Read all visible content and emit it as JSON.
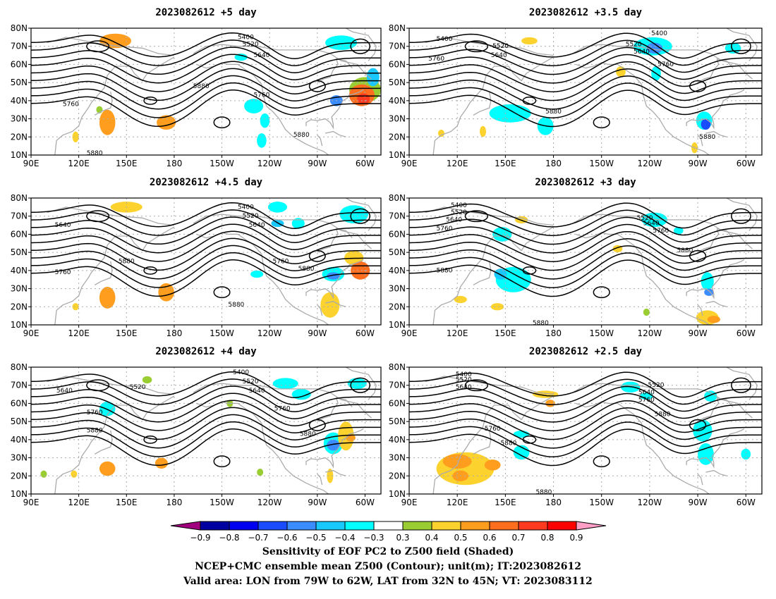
{
  "panels": [
    {
      "id": "p1",
      "title": "2023082612  +5 day",
      "contour_labels": [
        {
          "text": "5400",
          "lon": -135,
          "lat": 75
        },
        {
          "text": "5520",
          "lon": -132,
          "lat": 71
        },
        {
          "text": "5640",
          "lon": -125,
          "lat": 65
        },
        {
          "text": "5880",
          "lon": -163,
          "lat": 48
        },
        {
          "text": "5760",
          "lon": -125,
          "lat": 43
        },
        {
          "text": "5760",
          "lon": 115,
          "lat": 38
        },
        {
          "text": "5880",
          "lon": -100,
          "lat": 21
        },
        {
          "text": "5880",
          "lon": 130,
          "lat": 11
        }
      ],
      "shaded": [
        {
          "lon": 143,
          "lat": 73,
          "rx": 10,
          "ry": 4,
          "v": 0.5
        },
        {
          "lon": -75,
          "lat": 72,
          "rx": 10,
          "ry": 4,
          "v": -0.4
        },
        {
          "lon": -138,
          "lat": 64,
          "rx": 4,
          "ry": 2,
          "v": -0.4
        },
        {
          "lon": -72,
          "lat": 61,
          "rx": 4,
          "ry": 2,
          "v": -0.3
        },
        {
          "lon": -60,
          "lat": 46,
          "rx": 10,
          "ry": 7,
          "v": 0.3
        },
        {
          "lon": -62,
          "lat": 43,
          "rx": 8,
          "ry": 6,
          "v": 0.6
        },
        {
          "lon": -61,
          "lat": 41,
          "rx": 4,
          "ry": 3,
          "v": 0.7
        },
        {
          "lon": -78,
          "lat": 40,
          "rx": 4,
          "ry": 3,
          "v": -0.6
        },
        {
          "lon": -55,
          "lat": 53,
          "rx": 4,
          "ry": 5,
          "v": -0.5
        },
        {
          "lon": -130,
          "lat": 37,
          "rx": 6,
          "ry": 4,
          "v": -0.4
        },
        {
          "lon": -123,
          "lat": 29,
          "rx": 3,
          "ry": 4,
          "v": -0.4
        },
        {
          "lon": -125,
          "lat": 18,
          "rx": 3,
          "ry": 4,
          "v": -0.4
        },
        {
          "lon": -107,
          "lat": 38,
          "rx": 3,
          "ry": 2,
          "v": -0.3
        },
        {
          "lon": 138,
          "lat": 28,
          "rx": 5,
          "ry": 7,
          "v": 0.5
        },
        {
          "lon": 118,
          "lat": 20,
          "rx": 2,
          "ry": 3,
          "v": 0.4
        },
        {
          "lon": 175,
          "lat": 28,
          "rx": 6,
          "ry": 4,
          "v": 0.5
        },
        {
          "lon": 133,
          "lat": 35,
          "rx": 2,
          "ry": 2,
          "v": 0.3
        }
      ]
    },
    {
      "id": "p2",
      "title": "2023082612  +3.5 day",
      "contour_labels": [
        {
          "text": "5400",
          "lon": -114,
          "lat": 77
        },
        {
          "text": "5400",
          "lon": 112,
          "lat": 74
        },
        {
          "text": "5520",
          "lon": -130,
          "lat": 71
        },
        {
          "text": "5640",
          "lon": -125,
          "lat": 67
        },
        {
          "text": "5520",
          "lon": 147,
          "lat": 70
        },
        {
          "text": "5640",
          "lon": 146,
          "lat": 65
        },
        {
          "text": "5760",
          "lon": 107,
          "lat": 63
        },
        {
          "text": "5760",
          "lon": -110,
          "lat": 60
        },
        {
          "text": "5880",
          "lon": 180,
          "lat": 34
        },
        {
          "text": "5880",
          "lon": -84,
          "lat": 20
        }
      ],
      "shaded": [
        {
          "lon": -118,
          "lat": 70,
          "rx": 12,
          "ry": 5,
          "v": -0.4
        },
        {
          "lon": -117,
          "lat": 69,
          "rx": 5,
          "ry": 3,
          "v": -0.6
        },
        {
          "lon": -68,
          "lat": 69,
          "rx": 5,
          "ry": 3,
          "v": -0.4
        },
        {
          "lon": -98,
          "lat": 67,
          "rx": 4,
          "ry": 2,
          "v": -0.3
        },
        {
          "lon": 165,
          "lat": 73,
          "rx": 5,
          "ry": 2,
          "v": 0.4
        },
        {
          "lon": -116,
          "lat": 55,
          "rx": 3,
          "ry": 4,
          "v": -0.4
        },
        {
          "lon": -138,
          "lat": 56,
          "rx": 3,
          "ry": 3,
          "v": 0.4
        },
        {
          "lon": 153,
          "lat": 33,
          "rx": 13,
          "ry": 5,
          "v": -0.4
        },
        {
          "lon": 175,
          "lat": 26,
          "rx": 5,
          "ry": 5,
          "v": -0.4
        },
        {
          "lon": 150,
          "lat": 52,
          "rx": 5,
          "ry": 2,
          "v": -0.3
        },
        {
          "lon": -86,
          "lat": 29,
          "rx": 5,
          "ry": 5,
          "v": -0.4
        },
        {
          "lon": -85,
          "lat": 27,
          "rx": 3,
          "ry": 3,
          "v": -0.7
        },
        {
          "lon": -92,
          "lat": 14,
          "rx": 2,
          "ry": 3,
          "v": 0.4
        },
        {
          "lon": 136,
          "lat": 23,
          "rx": 2,
          "ry": 3,
          "v": 0.4
        },
        {
          "lon": 110,
          "lat": 22,
          "rx": 2,
          "ry": 2,
          "v": 0.4
        }
      ]
    },
    {
      "id": "p3",
      "title": "2023082612  +4.5 day",
      "contour_labels": [
        {
          "text": "5400",
          "lon": -135,
          "lat": 75
        },
        {
          "text": "5520",
          "lon": -132,
          "lat": 70
        },
        {
          "text": "5640",
          "lon": -128,
          "lat": 65
        },
        {
          "text": "5640",
          "lon": 110,
          "lat": 65
        },
        {
          "text": "5880",
          "lon": 150,
          "lat": 45
        },
        {
          "text": "5760",
          "lon": -113,
          "lat": 45
        },
        {
          "text": "5880",
          "lon": -97,
          "lat": 41
        },
        {
          "text": "5760",
          "lon": 110,
          "lat": 39
        },
        {
          "text": "5880",
          "lon": -141,
          "lat": 21
        }
      ],
      "shaded": [
        {
          "lon": 150,
          "lat": 75,
          "rx": 10,
          "ry": 3,
          "v": 0.4
        },
        {
          "lon": -115,
          "lat": 75,
          "rx": 6,
          "ry": 3,
          "v": -0.4
        },
        {
          "lon": -67,
          "lat": 71,
          "rx": 9,
          "ry": 5,
          "v": -0.4
        },
        {
          "lon": -102,
          "lat": 66,
          "rx": 4,
          "ry": 3,
          "v": -0.4
        },
        {
          "lon": -115,
          "lat": 66,
          "rx": 4,
          "ry": 2,
          "v": -0.5
        },
        {
          "lon": -67,
          "lat": 47,
          "rx": 6,
          "ry": 4,
          "v": 0.4
        },
        {
          "lon": -63,
          "lat": 40,
          "rx": 6,
          "ry": 5,
          "v": 0.6
        },
        {
          "lon": -80,
          "lat": 38,
          "rx": 7,
          "ry": 4,
          "v": -0.4
        },
        {
          "lon": -80,
          "lat": 37,
          "rx": 4,
          "ry": 2,
          "v": -0.6
        },
        {
          "lon": -128,
          "lat": 38,
          "rx": 4,
          "ry": 2,
          "v": -0.4
        },
        {
          "lon": -82,
          "lat": 21,
          "rx": 6,
          "ry": 7,
          "v": 0.4
        },
        {
          "lon": 138,
          "lat": 25,
          "rx": 5,
          "ry": 6,
          "v": 0.5
        },
        {
          "lon": 118,
          "lat": 20,
          "rx": 2,
          "ry": 2,
          "v": 0.4
        },
        {
          "lon": 175,
          "lat": 28,
          "rx": 5,
          "ry": 5,
          "v": 0.5
        }
      ]
    },
    {
      "id": "p4",
      "title": "2023082612  +3 day",
      "contour_labels": [
        {
          "text": "5400",
          "lon": 121,
          "lat": 76
        },
        {
          "text": "5520",
          "lon": 121,
          "lat": 72
        },
        {
          "text": "5640",
          "lon": 118,
          "lat": 68
        },
        {
          "text": "5760",
          "lon": 112,
          "lat": 63
        },
        {
          "text": "5520",
          "lon": -123,
          "lat": 69
        },
        {
          "text": "5640",
          "lon": -119,
          "lat": 66
        },
        {
          "text": "5760",
          "lon": -113,
          "lat": 62
        },
        {
          "text": "5880",
          "lon": -98,
          "lat": 51
        },
        {
          "text": "5880",
          "lon": 112,
          "lat": 40
        },
        {
          "text": "5880",
          "lon": 172,
          "lat": 11
        }
      ],
      "shaded": [
        {
          "lon": 160,
          "lat": 68,
          "rx": 4,
          "ry": 2,
          "v": 0.4
        },
        {
          "lon": -117,
          "lat": 68,
          "rx": 8,
          "ry": 4,
          "v": -0.4
        },
        {
          "lon": -102,
          "lat": 62,
          "rx": 3,
          "ry": 2,
          "v": -0.4
        },
        {
          "lon": 148,
          "lat": 60,
          "rx": 6,
          "ry": 4,
          "v": -0.4
        },
        {
          "lon": 165,
          "lat": 56,
          "rx": 3,
          "ry": 2,
          "v": -0.3
        },
        {
          "lon": -140,
          "lat": 52,
          "rx": 3,
          "ry": 2,
          "v": 0.4
        },
        {
          "lon": 155,
          "lat": 35,
          "rx": 11,
          "ry": 7,
          "v": -0.4
        },
        {
          "lon": 147,
          "lat": 38,
          "rx": 4,
          "ry": 3,
          "v": -0.5
        },
        {
          "lon": -84,
          "lat": 34,
          "rx": 4,
          "ry": 5,
          "v": -0.4
        },
        {
          "lon": -83,
          "lat": 28,
          "rx": 3,
          "ry": 2,
          "v": -0.6
        },
        {
          "lon": -84,
          "lat": 14,
          "rx": 7,
          "ry": 4,
          "v": 0.4
        },
        {
          "lon": -80,
          "lat": 13,
          "rx": 4,
          "ry": 2,
          "v": 0.5
        },
        {
          "lon": 122,
          "lat": 24,
          "rx": 4,
          "ry": 2,
          "v": 0.4
        },
        {
          "lon": 145,
          "lat": 20,
          "rx": 4,
          "ry": 2,
          "v": 0.4
        },
        {
          "lon": -122,
          "lat": 17,
          "rx": 2,
          "ry": 2,
          "v": 0.3
        }
      ]
    },
    {
      "id": "p5",
      "title": "2023082612  +4 day",
      "contour_labels": [
        {
          "text": "5400",
          "lon": -138,
          "lat": 77
        },
        {
          "text": "5520",
          "lon": -132,
          "lat": 72
        },
        {
          "text": "5640",
          "lon": -128,
          "lat": 67
        },
        {
          "text": "5520",
          "lon": 157,
          "lat": 69
        },
        {
          "text": "5640",
          "lon": 111,
          "lat": 67
        },
        {
          "text": "5760",
          "lon": 130,
          "lat": 55
        },
        {
          "text": "5760",
          "lon": -112,
          "lat": 57
        },
        {
          "text": "5880",
          "lon": 130,
          "lat": 45
        },
        {
          "text": "5880",
          "lon": -96,
          "lat": 43
        }
      ],
      "shaded": [
        {
          "lon": -65,
          "lat": 71,
          "rx": 6,
          "ry": 3,
          "v": -0.4
        },
        {
          "lon": -110,
          "lat": 71,
          "rx": 8,
          "ry": 3,
          "v": -0.4
        },
        {
          "lon": -100,
          "lat": 65,
          "rx": 6,
          "ry": 3,
          "v": -0.4
        },
        {
          "lon": 163,
          "lat": 73,
          "rx": 3,
          "ry": 2,
          "v": 0.3
        },
        {
          "lon": 138,
          "lat": 57,
          "rx": 5,
          "ry": 4,
          "v": -0.4
        },
        {
          "lon": -145,
          "lat": 60,
          "rx": 2,
          "ry": 2,
          "v": 0.3
        },
        {
          "lon": -80,
          "lat": 38,
          "rx": 6,
          "ry": 6,
          "v": -0.4
        },
        {
          "lon": -80,
          "lat": 37,
          "rx": 4,
          "ry": 3,
          "v": -0.6
        },
        {
          "lon": -72,
          "lat": 42,
          "rx": 5,
          "ry": 8,
          "v": 0.4
        },
        {
          "lon": -69,
          "lat": 41,
          "rx": 3,
          "ry": 2,
          "v": 0.5
        },
        {
          "lon": -82,
          "lat": 20,
          "rx": 2,
          "ry": 4,
          "v": 0.4
        },
        {
          "lon": 138,
          "lat": 24,
          "rx": 5,
          "ry": 4,
          "v": 0.5
        },
        {
          "lon": 117,
          "lat": 21,
          "rx": 2,
          "ry": 2,
          "v": 0.4
        },
        {
          "lon": 172,
          "lat": 27,
          "rx": 4,
          "ry": 3,
          "v": 0.5
        },
        {
          "lon": 98,
          "lat": 21,
          "rx": 2,
          "ry": 2,
          "v": 0.3
        },
        {
          "lon": -126,
          "lat": 22,
          "rx": 2,
          "ry": 2,
          "v": 0.3
        }
      ]
    },
    {
      "id": "p6",
      "title": "2023082612  +2.5 day",
      "contour_labels": [
        {
          "text": "5400",
          "lon": 124,
          "lat": 76
        },
        {
          "text": "5520",
          "lon": 124,
          "lat": 73
        },
        {
          "text": "5640",
          "lon": 124,
          "lat": 69
        },
        {
          "text": "5520",
          "lon": -116,
          "lat": 70
        },
        {
          "text": "5640",
          "lon": -122,
          "lat": 66
        },
        {
          "text": "5760",
          "lon": -122,
          "lat": 62
        },
        {
          "text": "5880",
          "lon": -112,
          "lat": 54
        },
        {
          "text": "5760",
          "lon": 142,
          "lat": 46
        },
        {
          "text": "5880",
          "lon": 152,
          "lat": 38
        },
        {
          "text": "5880",
          "lon": 174,
          "lat": 11
        }
      ],
      "shaded": [
        {
          "lon": -132,
          "lat": 69,
          "rx": 6,
          "ry": 3,
          "v": -0.4
        },
        {
          "lon": -122,
          "lat": 64,
          "rx": 4,
          "ry": 2,
          "v": -0.4
        },
        {
          "lon": -82,
          "lat": 64,
          "rx": 4,
          "ry": 3,
          "v": -0.4
        },
        {
          "lon": 175,
          "lat": 65,
          "rx": 8,
          "ry": 2,
          "v": 0.4
        },
        {
          "lon": -87,
          "lat": 45,
          "rx": 6,
          "ry": 6,
          "v": -0.4
        },
        {
          "lon": -85,
          "lat": 32,
          "rx": 5,
          "ry": 6,
          "v": -0.4
        },
        {
          "lon": 160,
          "lat": 43,
          "rx": 5,
          "ry": 2,
          "v": -0.4
        },
        {
          "lon": 160,
          "lat": 33,
          "rx": 5,
          "ry": 4,
          "v": -0.4
        },
        {
          "lon": -60,
          "lat": 32,
          "rx": 3,
          "ry": 3,
          "v": -0.4
        },
        {
          "lon": 125,
          "lat": 24,
          "rx": 18,
          "ry": 9,
          "v": 0.4
        },
        {
          "lon": 120,
          "lat": 28,
          "rx": 9,
          "ry": 4,
          "v": 0.5
        },
        {
          "lon": 142,
          "lat": 26,
          "rx": 5,
          "ry": 3,
          "v": 0.5
        },
        {
          "lon": 122,
          "lat": 20,
          "rx": 5,
          "ry": 3,
          "v": 0.5
        },
        {
          "lon": 152,
          "lat": 57,
          "rx": 4,
          "ry": 2,
          "v": -0.3
        },
        {
          "lon": 178,
          "lat": 60,
          "rx": 3,
          "ry": 2,
          "v": 0.5
        },
        {
          "lon": -145,
          "lat": 53,
          "rx": 2,
          "ry": 2,
          "v": -0.3
        }
      ]
    }
  ],
  "axes": {
    "x_ticks": [
      "90E",
      "120E",
      "150E",
      "180",
      "150W",
      "120W",
      "90W",
      "60W"
    ],
    "y_ticks": [
      "80N",
      "70N",
      "60N",
      "50N",
      "40N",
      "30N",
      "20N",
      "10N"
    ],
    "lon_range": [
      90,
      -50
    ],
    "lat_range": [
      10,
      80
    ]
  },
  "colorbar": {
    "ticks": [
      "−0.9",
      "−0.8",
      "−0.7",
      "−0.6",
      "−0.5",
      "−0.4",
      "−0.3",
      "0.3",
      "0.4",
      "0.5",
      "0.6",
      "0.7",
      "0.8",
      "0.9"
    ],
    "values": [
      -0.9,
      -0.8,
      -0.7,
      -0.6,
      -0.5,
      -0.4,
      -0.3,
      0.3,
      0.4,
      0.5,
      0.6,
      0.7,
      0.8,
      0.9
    ],
    "colors": [
      "#0000a0",
      "#0000f0",
      "#1a4cff",
      "#3a8cff",
      "#18c8ff",
      "#00ffff",
      "#ffffff",
      "#9acd32",
      "#fcd22e",
      "#ff9e1e",
      "#ff6e1e",
      "#ff3a1e",
      "#ff0000"
    ],
    "low_color": "#a0007d",
    "high_color": "#ff9fc8"
  },
  "colors": {
    "contour": "#000000",
    "coast": "#aaaaaa",
    "grid": "#aaaaaa"
  },
  "captions": {
    "line1": "Sensitivity of EOF PC2 to Z500 field (Shaded)",
    "line2": "NCEP+CMC ensemble mean Z500 (Contour); unit(m); IT:2023082612",
    "line3": "Valid area: LON from 79W to 62W, LAT from 32N to 45N; VT: 2023083112"
  }
}
